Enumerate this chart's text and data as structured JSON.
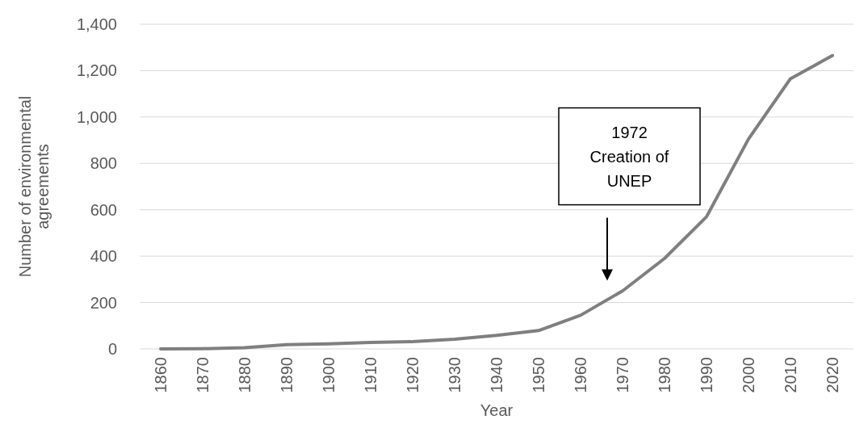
{
  "chart_data": {
    "type": "line",
    "xlabel": "Year",
    "ylabel": "Number of environmental agreements",
    "categories": [
      "1860",
      "1870",
      "1880",
      "1890",
      "1900",
      "1910",
      "1920",
      "1930",
      "1940",
      "1950",
      "1960",
      "1970",
      "1980",
      "1990",
      "2000",
      "2010",
      "2020"
    ],
    "series": [
      {
        "color": "#7f7f7f",
        "values": [
          0,
          1,
          5,
          18,
          22,
          28,
          31,
          42,
          58,
          79,
          145,
          250,
          390,
          570,
          905,
          1165,
          1265
        ]
      }
    ],
    "ylim": [
      0,
      1400
    ],
    "yticks": [
      0,
      {
        "value": 200,
        "label": "200"
      },
      {
        "value": 400,
        "label": "400"
      },
      {
        "value": 600,
        "label": "600"
      },
      {
        "value": 800,
        "label": "800"
      },
      {
        "value": 1000,
        "label": "1,000"
      },
      {
        "value": 1200,
        "label": "1,200"
      },
      {
        "value": 1400,
        "label": "1,400"
      }
    ],
    "grid": "y",
    "marker": "none",
    "line_style": "solid",
    "annotations": [
      "1972\nCreation of\nUNEP"
    ]
  }
}
